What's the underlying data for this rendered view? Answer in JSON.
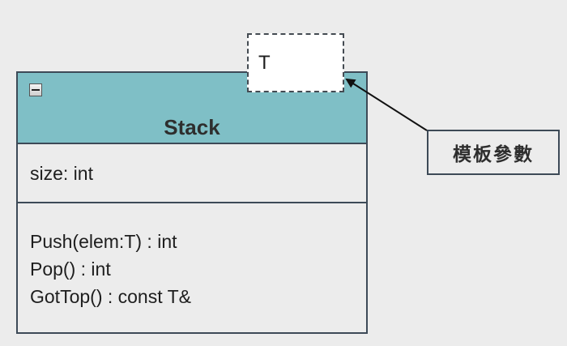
{
  "class": {
    "name": "Stack",
    "attributes": [
      "size: int"
    ],
    "operations": [
      "Push(elem:T) : int",
      "Pop() : int",
      "GotTop() : const T&"
    ]
  },
  "template": {
    "parameter": "T"
  },
  "note": {
    "label": "模板參數"
  },
  "colors": {
    "header": "#7fbfc6",
    "border": "#3d4a57",
    "background": "#ececec"
  },
  "icons": {
    "collapse": "minus-icon"
  }
}
